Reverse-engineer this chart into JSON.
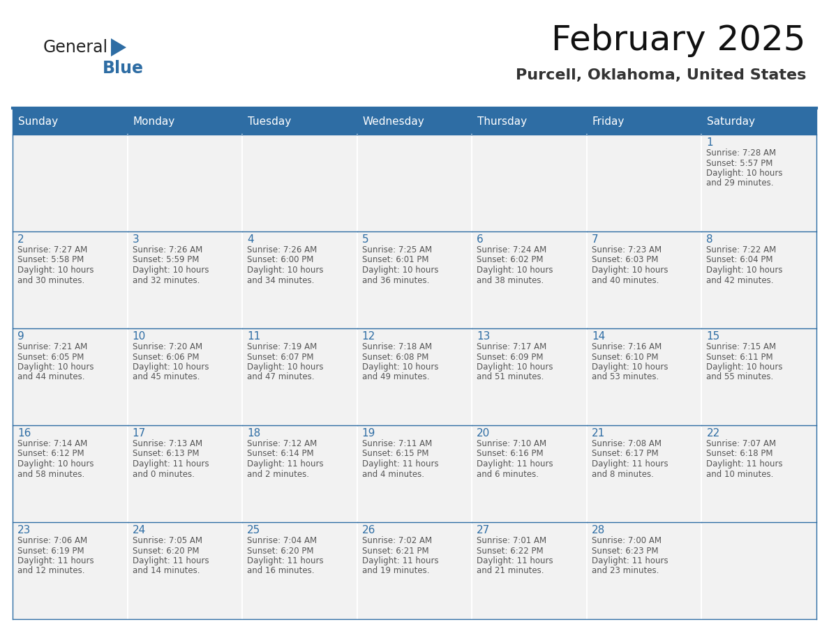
{
  "title": "February 2025",
  "subtitle": "Purcell, Oklahoma, United States",
  "header_bg": "#2E6DA4",
  "header_text_color": "#FFFFFF",
  "cell_bg": "#FFFFFF",
  "cell_alt_bg": "#F2F2F2",
  "cell_border_color": "#2E6DA4",
  "day_number_color": "#2E6DA4",
  "text_color": "#555555",
  "days_of_week": [
    "Sunday",
    "Monday",
    "Tuesday",
    "Wednesday",
    "Thursday",
    "Friday",
    "Saturday"
  ],
  "calendar_data": [
    [
      null,
      null,
      null,
      null,
      null,
      null,
      {
        "day": 1,
        "sunrise": "7:28 AM",
        "sunset": "5:57 PM",
        "daylight_line1": "Daylight: 10 hours",
        "daylight_line2": "and 29 minutes."
      }
    ],
    [
      {
        "day": 2,
        "sunrise": "7:27 AM",
        "sunset": "5:58 PM",
        "daylight_line1": "Daylight: 10 hours",
        "daylight_line2": "and 30 minutes."
      },
      {
        "day": 3,
        "sunrise": "7:26 AM",
        "sunset": "5:59 PM",
        "daylight_line1": "Daylight: 10 hours",
        "daylight_line2": "and 32 minutes."
      },
      {
        "day": 4,
        "sunrise": "7:26 AM",
        "sunset": "6:00 PM",
        "daylight_line1": "Daylight: 10 hours",
        "daylight_line2": "and 34 minutes."
      },
      {
        "day": 5,
        "sunrise": "7:25 AM",
        "sunset": "6:01 PM",
        "daylight_line1": "Daylight: 10 hours",
        "daylight_line2": "and 36 minutes."
      },
      {
        "day": 6,
        "sunrise": "7:24 AM",
        "sunset": "6:02 PM",
        "daylight_line1": "Daylight: 10 hours",
        "daylight_line2": "and 38 minutes."
      },
      {
        "day": 7,
        "sunrise": "7:23 AM",
        "sunset": "6:03 PM",
        "daylight_line1": "Daylight: 10 hours",
        "daylight_line2": "and 40 minutes."
      },
      {
        "day": 8,
        "sunrise": "7:22 AM",
        "sunset": "6:04 PM",
        "daylight_line1": "Daylight: 10 hours",
        "daylight_line2": "and 42 minutes."
      }
    ],
    [
      {
        "day": 9,
        "sunrise": "7:21 AM",
        "sunset": "6:05 PM",
        "daylight_line1": "Daylight: 10 hours",
        "daylight_line2": "and 44 minutes."
      },
      {
        "day": 10,
        "sunrise": "7:20 AM",
        "sunset": "6:06 PM",
        "daylight_line1": "Daylight: 10 hours",
        "daylight_line2": "and 45 minutes."
      },
      {
        "day": 11,
        "sunrise": "7:19 AM",
        "sunset": "6:07 PM",
        "daylight_line1": "Daylight: 10 hours",
        "daylight_line2": "and 47 minutes."
      },
      {
        "day": 12,
        "sunrise": "7:18 AM",
        "sunset": "6:08 PM",
        "daylight_line1": "Daylight: 10 hours",
        "daylight_line2": "and 49 minutes."
      },
      {
        "day": 13,
        "sunrise": "7:17 AM",
        "sunset": "6:09 PM",
        "daylight_line1": "Daylight: 10 hours",
        "daylight_line2": "and 51 minutes."
      },
      {
        "day": 14,
        "sunrise": "7:16 AM",
        "sunset": "6:10 PM",
        "daylight_line1": "Daylight: 10 hours",
        "daylight_line2": "and 53 minutes."
      },
      {
        "day": 15,
        "sunrise": "7:15 AM",
        "sunset": "6:11 PM",
        "daylight_line1": "Daylight: 10 hours",
        "daylight_line2": "and 55 minutes."
      }
    ],
    [
      {
        "day": 16,
        "sunrise": "7:14 AM",
        "sunset": "6:12 PM",
        "daylight_line1": "Daylight: 10 hours",
        "daylight_line2": "and 58 minutes."
      },
      {
        "day": 17,
        "sunrise": "7:13 AM",
        "sunset": "6:13 PM",
        "daylight_line1": "Daylight: 11 hours",
        "daylight_line2": "and 0 minutes."
      },
      {
        "day": 18,
        "sunrise": "7:12 AM",
        "sunset": "6:14 PM",
        "daylight_line1": "Daylight: 11 hours",
        "daylight_line2": "and 2 minutes."
      },
      {
        "day": 19,
        "sunrise": "7:11 AM",
        "sunset": "6:15 PM",
        "daylight_line1": "Daylight: 11 hours",
        "daylight_line2": "and 4 minutes."
      },
      {
        "day": 20,
        "sunrise": "7:10 AM",
        "sunset": "6:16 PM",
        "daylight_line1": "Daylight: 11 hours",
        "daylight_line2": "and 6 minutes."
      },
      {
        "day": 21,
        "sunrise": "7:08 AM",
        "sunset": "6:17 PM",
        "daylight_line1": "Daylight: 11 hours",
        "daylight_line2": "and 8 minutes."
      },
      {
        "day": 22,
        "sunrise": "7:07 AM",
        "sunset": "6:18 PM",
        "daylight_line1": "Daylight: 11 hours",
        "daylight_line2": "and 10 minutes."
      }
    ],
    [
      {
        "day": 23,
        "sunrise": "7:06 AM",
        "sunset": "6:19 PM",
        "daylight_line1": "Daylight: 11 hours",
        "daylight_line2": "and 12 minutes."
      },
      {
        "day": 24,
        "sunrise": "7:05 AM",
        "sunset": "6:20 PM",
        "daylight_line1": "Daylight: 11 hours",
        "daylight_line2": "and 14 minutes."
      },
      {
        "day": 25,
        "sunrise": "7:04 AM",
        "sunset": "6:20 PM",
        "daylight_line1": "Daylight: 11 hours",
        "daylight_line2": "and 16 minutes."
      },
      {
        "day": 26,
        "sunrise": "7:02 AM",
        "sunset": "6:21 PM",
        "daylight_line1": "Daylight: 11 hours",
        "daylight_line2": "and 19 minutes."
      },
      {
        "day": 27,
        "sunrise": "7:01 AM",
        "sunset": "6:22 PM",
        "daylight_line1": "Daylight: 11 hours",
        "daylight_line2": "and 21 minutes."
      },
      {
        "day": 28,
        "sunrise": "7:00 AM",
        "sunset": "6:23 PM",
        "daylight_line1": "Daylight: 11 hours",
        "daylight_line2": "and 23 minutes."
      },
      null
    ]
  ],
  "logo_text_general": "General",
  "logo_text_blue": "Blue",
  "logo_triangle_color": "#2E6DA4",
  "title_fontsize": 36,
  "subtitle_fontsize": 16,
  "header_fontsize": 11,
  "day_num_fontsize": 11,
  "cell_text_fontsize": 8.5
}
